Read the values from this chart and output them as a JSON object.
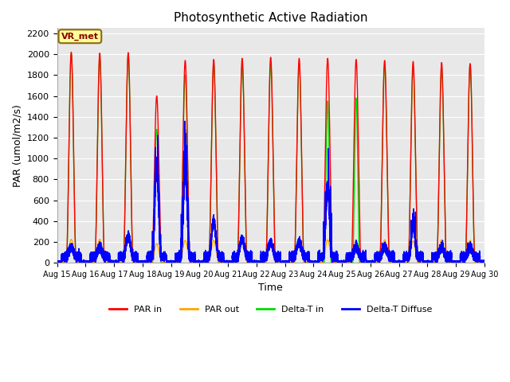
{
  "title": "Photosynthetic Active Radiation",
  "ylabel": "PAR (umol/m2/s)",
  "xlabel": "Time",
  "ylim": [
    0,
    2250
  ],
  "yticks": [
    0,
    200,
    400,
    600,
    800,
    1000,
    1200,
    1400,
    1600,
    1800,
    2000,
    2200
  ],
  "xtick_labels": [
    "Aug 15",
    "Aug 16",
    "Aug 17",
    "Aug 18",
    "Aug 19",
    "Aug 20",
    "Aug 21",
    "Aug 22",
    "Aug 23",
    "Aug 24",
    "Aug 25",
    "Aug 26",
    "Aug 27",
    "Aug 28",
    "Aug 29",
    "Aug 30"
  ],
  "legend_labels": [
    "PAR in",
    "PAR out",
    "Delta-T in",
    "Delta-T Diffuse"
  ],
  "legend_colors": [
    "#ff0000",
    "#ffa500",
    "#00dd00",
    "#0000ff"
  ],
  "annotation_text": "VR_met",
  "annotation_box_color": "#ffff99",
  "annotation_box_edge_color": "#8b6914",
  "annotation_text_color": "#8b0000",
  "background_color": "#e8e8e8",
  "line_width": 1.0,
  "num_days": 15
}
